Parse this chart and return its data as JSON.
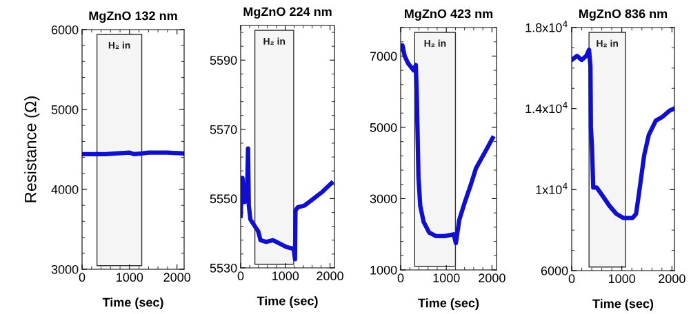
{
  "chart_data": [
    {
      "type": "line",
      "title": "MgZnO 132 nm",
      "xlabel": "Time (sec)",
      "ylabel": "Resistance (Ω)",
      "xlim": [
        0,
        2150
      ],
      "ylim": [
        3000,
        6000
      ],
      "xticks": [
        0,
        1000,
        2000
      ],
      "yticks": [
        3000,
        4000,
        5000,
        6000
      ],
      "grid": false,
      "legend": false,
      "line_style": "solid",
      "marker": "none",
      "bands": [
        {
          "axis": "x",
          "from": 314,
          "to": 1257,
          "label": "H₂ in",
          "color": "#333333"
        }
      ],
      "series": [
        {
          "color": "#1010cc",
          "x": [
            0,
            300,
            500,
            700,
            1000,
            1100,
            1250,
            1400,
            1800,
            2150
          ],
          "values": [
            4440,
            4440,
            4440,
            4450,
            4460,
            4440,
            4450,
            4460,
            4460,
            4450
          ]
        }
      ]
    },
    {
      "type": "line",
      "title": "MgZnO 224 nm",
      "xlabel": "Time (sec)",
      "xlim": [
        0,
        2100
      ],
      "ylim": [
        5530,
        5600
      ],
      "xticks": [
        0,
        1000,
        2000
      ],
      "yticks": [
        5530,
        5550,
        5570,
        5590
      ],
      "grid": false,
      "legend": false,
      "line_style": "solid",
      "marker": "none",
      "bands": [
        {
          "axis": "x",
          "from": 318,
          "to": 1187,
          "label": "H₂ in",
          "color": "#333333"
        }
      ],
      "series": [
        {
          "color": "#1010cc",
          "x": [
            0,
            15,
            40,
            90,
            140,
            165,
            182,
            217,
            318,
            394,
            444,
            570,
            722,
            874,
            1025,
            1187,
            1217,
            1227,
            1278,
            1429,
            1631,
            1833,
            2035
          ],
          "values": [
            5545,
            5550.5,
            5556,
            5549,
            5550,
            5564.5,
            5548,
            5544,
            5542,
            5540.5,
            5538,
            5537.5,
            5538,
            5537,
            5536,
            5535.5,
            5532.5,
            5546.5,
            5547.5,
            5548,
            5550,
            5552,
            5554.5
          ]
        }
      ]
    },
    {
      "type": "line",
      "title": "MgZnO 423 nm",
      "xlabel": "Time (sec)",
      "xlim": [
        0,
        2100
      ],
      "ylim": [
        1000,
        7800
      ],
      "xticks": [
        0,
        1000,
        2000
      ],
      "yticks": [
        1000,
        3000,
        5000,
        7000
      ],
      "grid": false,
      "legend": false,
      "line_style": "solid",
      "marker": "none",
      "bands": [
        {
          "axis": "x",
          "from": 307,
          "to": 1200,
          "label": "H₂ in",
          "color": "#333333"
        }
      ],
      "series": [
        {
          "color": "#1010cc",
          "x": [
            0,
            39,
            88,
            161,
            283,
            332,
            356,
            390,
            429,
            502,
            624,
            771,
            966,
            1161,
            1210,
            1283,
            1405,
            1551,
            1649,
            1844,
            2015
          ],
          "values": [
            7200,
            7300,
            7000,
            6800,
            6600,
            6750,
            5750,
            3600,
            2800,
            2350,
            2050,
            1950,
            1950,
            2000,
            1750,
            2400,
            2900,
            3450,
            3850,
            4300,
            4700
          ]
        }
      ]
    },
    {
      "type": "line",
      "title": "MgZnO 836 nm",
      "xlabel": "Time (sec)",
      "xlim": [
        0,
        2050
      ],
      "ylim": [
        6000,
        18000
      ],
      "xticks": [
        0,
        1000,
        2000
      ],
      "yticks": [
        6000,
        {
          "value": 10000,
          "label": "1x10$^{4}$"
        },
        {
          "value": 14000,
          "label": "1.4x10$^{4}$"
        },
        {
          "value": 18000,
          "label": "1.8x10$^{4}$"
        }
      ],
      "grid": false,
      "legend": false,
      "line_style": "solid",
      "marker": "none",
      "bands": [
        {
          "axis": "x",
          "from": 346,
          "to": 1076,
          "label": "H₂ in",
          "color": "#333333"
        }
      ],
      "series": [
        {
          "color": "#1010cc",
          "x": [
            0,
            106,
            199,
            291,
            346,
            374,
            383,
            406,
            430,
            499,
            614,
            753,
            891,
            1030,
            1215,
            1284,
            1353,
            1446,
            1538,
            1677,
            1815,
            1954,
            2046
          ],
          "values": [
            16400,
            16600,
            16400,
            16600,
            16900,
            16100,
            13100,
            12000,
            10100,
            10100,
            9700,
            9200,
            8800,
            8600,
            8600,
            8800,
            10000,
            11700,
            12700,
            13400,
            13600,
            13900,
            14000
          ]
        }
      ]
    }
  ]
}
